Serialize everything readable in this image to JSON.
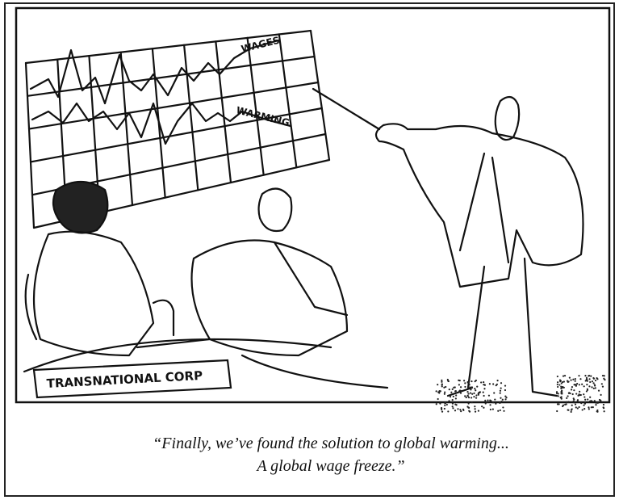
{
  "graph": {
    "wages_label": "WAGES",
    "warming_label": "WARMING"
  },
  "nameplate": "TRANSNATIONAL CORP",
  "caption": {
    "line1": "“Finally, we’ve found the solution to global warming...",
    "line2": "A global wage freeze.”"
  }
}
